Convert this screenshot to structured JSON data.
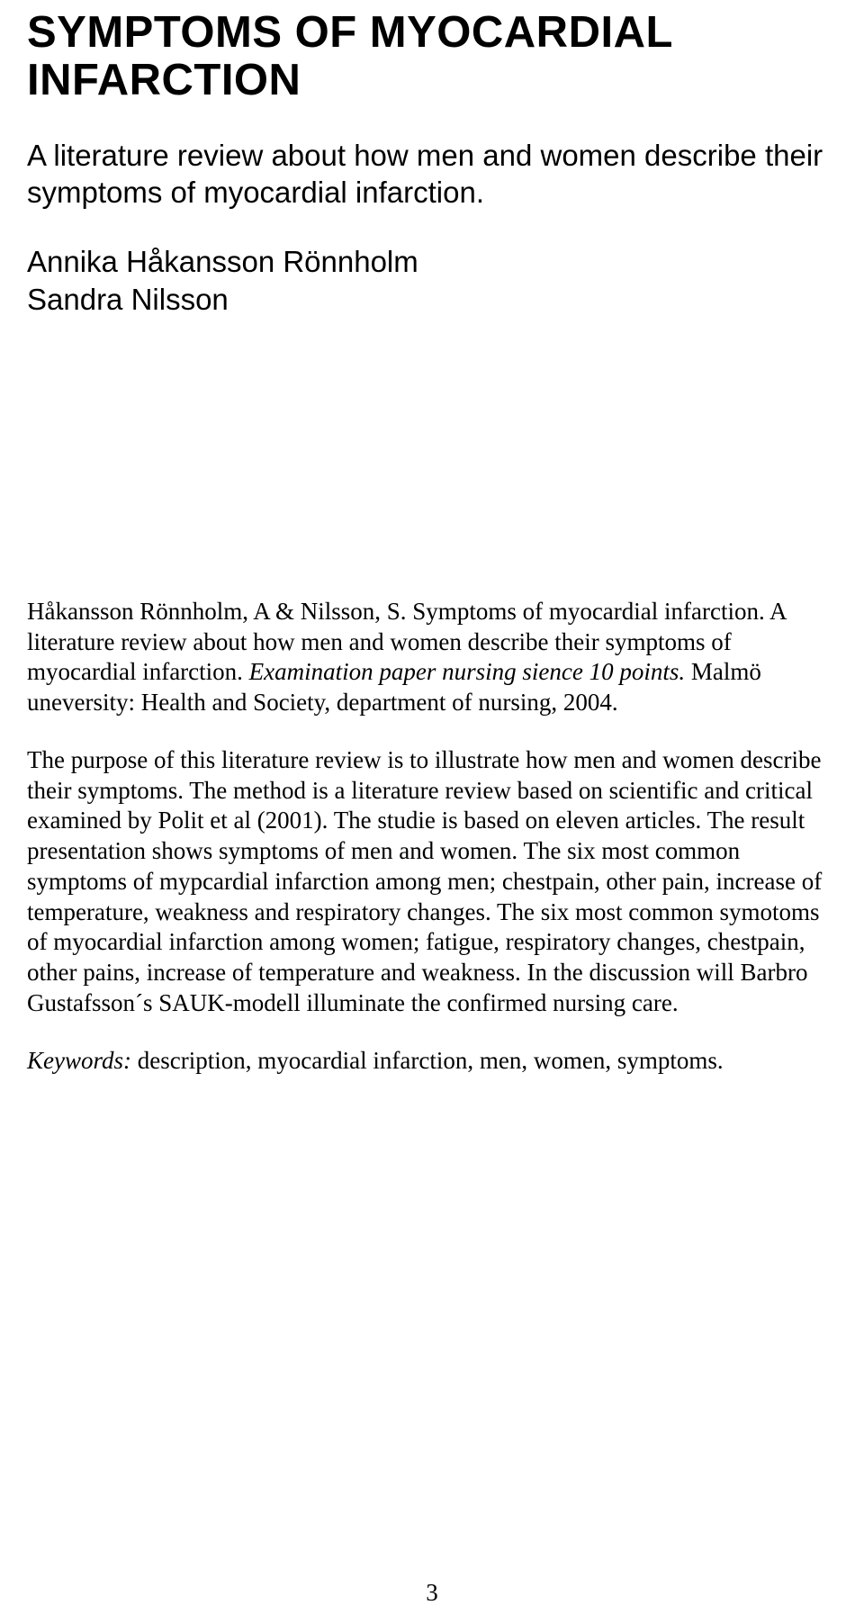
{
  "page": {
    "number": "3",
    "background_color": "#ffffff",
    "text_color": "#000000"
  },
  "title": {
    "text": "SYMPTOMS OF MYOCARDIAL INFARCTION",
    "font_family": "Arial",
    "font_weight": 900,
    "font_size_pt": 37
  },
  "subtitle": {
    "text": "A literature review about how men and women describe their symptoms of myocardial infarction.",
    "font_family": "Arial",
    "font_weight": 400,
    "font_size_pt": 25
  },
  "authors": {
    "line1": "Annika Håkansson Rönnholm",
    "line2": "Sandra Nilsson",
    "font_family": "Arial",
    "font_weight": 400,
    "font_size_pt": 25
  },
  "citation": {
    "authors_title": "Håkansson Rönnholm, A & Nilsson, S. Symptoms of myocardial infarction. A literature review about how men and women describe their symptoms of myocardial infarction.",
    "exam_italic": " Examination paper nursing sience 10 points.",
    "rest": " Malmö uneversity: Health and Society, department of nursing, 2004.",
    "font_family": "Times New Roman",
    "font_size_pt": 20
  },
  "abstract": {
    "text": "The purpose of this literature review is to illustrate how men and women describe their symptoms. The method is a literature review based on scientific and critical examined by Polit et al (2001). The studie is based on eleven articles. The result presentation shows symptoms of men and women. The six most common symptoms of mypcardial infarction among men; chestpain, other pain, increase of temperature, weakness and respiratory changes. The six most common symotoms of myocardial infarction among women; fatigue, respiratory changes, chestpain, other pains, increase of temperature and weakness. In the discussion will Barbro Gustafsson´s SAUK-modell illuminate the confirmed nursing care.",
    "font_family": "Times New Roman",
    "font_size_pt": 20
  },
  "keywords": {
    "label": "Keywords:",
    "text": " description, myocardial infarction, men, women, symptoms.",
    "font_family": "Times New Roman",
    "font_size_pt": 20
  }
}
